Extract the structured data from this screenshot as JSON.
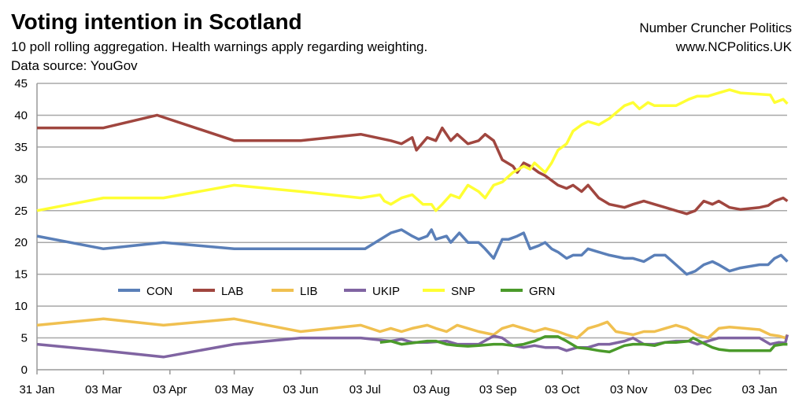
{
  "header": {
    "title": "Voting intention in Scotland",
    "subtitle": "10 poll rolling aggregation. Health warnings apply regarding weighting.",
    "source": "Data source: YouGov",
    "brand": "Number Cruncher Politics",
    "url": "www.NCPolitics.UK"
  },
  "chart_data": {
    "type": "line",
    "title": "Voting intention in Scotland",
    "xlabel": "",
    "ylabel": "",
    "ylim": [
      0,
      45
    ],
    "yticks": [
      0,
      5,
      10,
      15,
      20,
      25,
      30,
      35,
      40,
      45
    ],
    "xticks": [
      "31 Jan",
      "03 Mar",
      "03 Apr",
      "03 May",
      "03 Jun",
      "03 Jul",
      "03 Aug",
      "03 Sep",
      "03 Oct",
      "03 Nov",
      "03 Dec",
      "03 Jan"
    ],
    "grid": "horizontal",
    "legend": "inside-bottom",
    "series": [
      {
        "name": "CON",
        "color": "#5a7fb8",
        "points": [
          [
            "31 Jan",
            21
          ],
          [
            "03 Mar",
            19
          ],
          [
            "31 Mar",
            20
          ],
          [
            "03 May",
            19
          ],
          [
            "03 Jul",
            19
          ],
          [
            "15 Jul",
            21.5
          ],
          [
            "20 Jul",
            22
          ],
          [
            "25 Jul",
            21
          ],
          [
            "28 Jul",
            20.5
          ],
          [
            "01 Aug",
            21
          ],
          [
            "03 Aug",
            22
          ],
          [
            "05 Aug",
            20.5
          ],
          [
            "10 Aug",
            21
          ],
          [
            "12 Aug",
            20
          ],
          [
            "16 Aug",
            21.5
          ],
          [
            "20 Aug",
            20
          ],
          [
            "25 Aug",
            20
          ],
          [
            "28 Aug",
            19
          ],
          [
            "01 Sep",
            17.5
          ],
          [
            "05 Sep",
            20.5
          ],
          [
            "08 Sep",
            20.5
          ],
          [
            "12 Sep",
            21
          ],
          [
            "15 Sep",
            21.5
          ],
          [
            "18 Sep",
            19
          ],
          [
            "22 Sep",
            19.5
          ],
          [
            "25 Sep",
            20
          ],
          [
            "28 Sep",
            19
          ],
          [
            "01 Oct",
            18.5
          ],
          [
            "05 Oct",
            17.5
          ],
          [
            "08 Oct",
            18
          ],
          [
            "12 Oct",
            18
          ],
          [
            "15 Oct",
            19
          ],
          [
            "20 Oct",
            18.5
          ],
          [
            "25 Oct",
            18
          ],
          [
            "01 Nov",
            17.5
          ],
          [
            "05 Nov",
            17.5
          ],
          [
            "10 Nov",
            17
          ],
          [
            "15 Nov",
            18
          ],
          [
            "20 Nov",
            18
          ],
          [
            "25 Nov",
            16.5
          ],
          [
            "30 Nov",
            15
          ],
          [
            "04 Dec",
            15.5
          ],
          [
            "08 Dec",
            16.5
          ],
          [
            "12 Dec",
            17
          ],
          [
            "15 Dec",
            16.5
          ],
          [
            "20 Dec",
            15.5
          ],
          [
            "25 Dec",
            16
          ],
          [
            "03 Jan",
            16.5
          ],
          [
            "07 Jan",
            16.5
          ],
          [
            "10 Jan",
            17.5
          ],
          [
            "13 Jan",
            18
          ],
          [
            "16 Jan",
            17
          ]
        ]
      },
      {
        "name": "LAB",
        "color": "#a0463f",
        "points": [
          [
            "31 Jan",
            38
          ],
          [
            "03 Mar",
            38
          ],
          [
            "28 Mar",
            40
          ],
          [
            "03 May",
            36
          ],
          [
            "03 Jun",
            36
          ],
          [
            "01 Jul",
            37
          ],
          [
            "15 Jul",
            36
          ],
          [
            "20 Jul",
            35.5
          ],
          [
            "25 Jul",
            36.5
          ],
          [
            "27 Jul",
            34.5
          ],
          [
            "01 Aug",
            36.5
          ],
          [
            "05 Aug",
            36
          ],
          [
            "08 Aug",
            38
          ],
          [
            "12 Aug",
            36
          ],
          [
            "15 Aug",
            37
          ],
          [
            "20 Aug",
            35.5
          ],
          [
            "25 Aug",
            36
          ],
          [
            "28 Aug",
            37
          ],
          [
            "01 Sep",
            36
          ],
          [
            "05 Sep",
            33
          ],
          [
            "10 Sep",
            32
          ],
          [
            "12 Sep",
            31
          ],
          [
            "15 Sep",
            32.5
          ],
          [
            "18 Sep",
            32
          ],
          [
            "22 Sep",
            31
          ],
          [
            "25 Sep",
            30.5
          ],
          [
            "01 Oct",
            29
          ],
          [
            "05 Oct",
            28.5
          ],
          [
            "08 Oct",
            29
          ],
          [
            "12 Oct",
            28
          ],
          [
            "15 Oct",
            29
          ],
          [
            "20 Oct",
            27
          ],
          [
            "25 Oct",
            26
          ],
          [
            "01 Nov",
            25.5
          ],
          [
            "05 Nov",
            26
          ],
          [
            "10 Nov",
            26.5
          ],
          [
            "15 Nov",
            26
          ],
          [
            "20 Nov",
            25.5
          ],
          [
            "25 Nov",
            25
          ],
          [
            "30 Nov",
            24.5
          ],
          [
            "04 Dec",
            25
          ],
          [
            "08 Dec",
            26.5
          ],
          [
            "12 Dec",
            26
          ],
          [
            "15 Dec",
            26.5
          ],
          [
            "20 Dec",
            25.5
          ],
          [
            "25 Dec",
            25.2
          ],
          [
            "03 Jan",
            25.5
          ],
          [
            "07 Jan",
            25.8
          ],
          [
            "10 Jan",
            26.5
          ],
          [
            "14 Jan",
            27
          ],
          [
            "16 Jan",
            26.5
          ]
        ]
      },
      {
        "name": "LIB",
        "color": "#f0c050",
        "points": [
          [
            "31 Jan",
            7
          ],
          [
            "03 Mar",
            8
          ],
          [
            "31 Mar",
            7
          ],
          [
            "03 May",
            8
          ],
          [
            "03 Jun",
            6
          ],
          [
            "01 Jul",
            7
          ],
          [
            "10 Jul",
            6
          ],
          [
            "15 Jul",
            6.5
          ],
          [
            "20 Jul",
            6
          ],
          [
            "25 Jul",
            6.5
          ],
          [
            "01 Aug",
            7
          ],
          [
            "05 Aug",
            6.5
          ],
          [
            "10 Aug",
            6
          ],
          [
            "15 Aug",
            7
          ],
          [
            "20 Aug",
            6.5
          ],
          [
            "25 Aug",
            6
          ],
          [
            "01 Sep",
            5.5
          ],
          [
            "05 Sep",
            6.5
          ],
          [
            "10 Sep",
            7
          ],
          [
            "15 Sep",
            6.5
          ],
          [
            "20 Sep",
            6
          ],
          [
            "25 Sep",
            6.5
          ],
          [
            "01 Oct",
            6
          ],
          [
            "05 Oct",
            5.5
          ],
          [
            "10 Oct",
            5
          ],
          [
            "15 Oct",
            6.5
          ],
          [
            "20 Oct",
            7
          ],
          [
            "24 Oct",
            7.5
          ],
          [
            "28 Oct",
            6
          ],
          [
            "05 Nov",
            5.5
          ],
          [
            "10 Nov",
            6
          ],
          [
            "15 Nov",
            6
          ],
          [
            "20 Nov",
            6.5
          ],
          [
            "25 Nov",
            7
          ],
          [
            "30 Nov",
            6.5
          ],
          [
            "05 Dec",
            5.5
          ],
          [
            "10 Dec",
            5
          ],
          [
            "15 Dec",
            6.5
          ],
          [
            "20 Dec",
            6.7
          ],
          [
            "03 Jan",
            6.3
          ],
          [
            "08 Jan",
            5.5
          ],
          [
            "12 Jan",
            5.3
          ],
          [
            "15 Jan",
            5
          ],
          [
            "16 Jan",
            5.5
          ]
        ]
      },
      {
        "name": "UKIP",
        "color": "#8064a2",
        "points": [
          [
            "31 Jan",
            4
          ],
          [
            "03 Mar",
            3
          ],
          [
            "31 Mar",
            2
          ],
          [
            "03 May",
            4
          ],
          [
            "03 Jun",
            5
          ],
          [
            "01 Jul",
            5
          ],
          [
            "15 Jul",
            4.5
          ],
          [
            "20 Jul",
            4.8
          ],
          [
            "25 Jul",
            4.3
          ],
          [
            "01 Aug",
            4.3
          ],
          [
            "10 Aug",
            4.5
          ],
          [
            "15 Aug",
            4
          ],
          [
            "20 Aug",
            4
          ],
          [
            "25 Aug",
            4
          ],
          [
            "01 Sep",
            5.3
          ],
          [
            "05 Sep",
            5
          ],
          [
            "10 Sep",
            3.8
          ],
          [
            "15 Sep",
            3.5
          ],
          [
            "20 Sep",
            3.8
          ],
          [
            "25 Sep",
            3.5
          ],
          [
            "01 Oct",
            3.5
          ],
          [
            "05 Oct",
            3
          ],
          [
            "10 Oct",
            3.5
          ],
          [
            "15 Oct",
            3.5
          ],
          [
            "20 Oct",
            4
          ],
          [
            "25 Oct",
            4
          ],
          [
            "01 Nov",
            4.5
          ],
          [
            "05 Nov",
            5
          ],
          [
            "10 Nov",
            4
          ],
          [
            "15 Nov",
            4
          ],
          [
            "20 Nov",
            4.3
          ],
          [
            "25 Nov",
            4.5
          ],
          [
            "01 Dec",
            4.5
          ],
          [
            "05 Dec",
            4
          ],
          [
            "10 Dec",
            4.5
          ],
          [
            "15 Dec",
            5
          ],
          [
            "20 Dec",
            5
          ],
          [
            "03 Jan",
            5
          ],
          [
            "08 Jan",
            4
          ],
          [
            "12 Jan",
            4.3
          ],
          [
            "15 Jan",
            4.2
          ],
          [
            "16 Jan",
            5.5
          ]
        ]
      },
      {
        "name": "SNP",
        "color": "#ffff33",
        "points": [
          [
            "31 Jan",
            25
          ],
          [
            "03 Mar",
            27
          ],
          [
            "31 Mar",
            27
          ],
          [
            "03 May",
            29
          ],
          [
            "03 Jun",
            28
          ],
          [
            "01 Jul",
            27
          ],
          [
            "10 Jul",
            27.5
          ],
          [
            "12 Jul",
            26.5
          ],
          [
            "15 Jul",
            26
          ],
          [
            "20 Jul",
            27
          ],
          [
            "25 Jul",
            27.5
          ],
          [
            "30 Jul",
            26
          ],
          [
            "03 Aug",
            26
          ],
          [
            "05 Aug",
            25
          ],
          [
            "08 Aug",
            26
          ],
          [
            "12 Aug",
            27.5
          ],
          [
            "16 Aug",
            27
          ],
          [
            "20 Aug",
            29
          ],
          [
            "25 Aug",
            28
          ],
          [
            "28 Aug",
            27
          ],
          [
            "01 Sep",
            29
          ],
          [
            "05 Sep",
            29.5
          ],
          [
            "10 Sep",
            31
          ],
          [
            "15 Sep",
            32
          ],
          [
            "18 Sep",
            31.5
          ],
          [
            "20 Sep",
            32.5
          ],
          [
            "25 Sep",
            31
          ],
          [
            "28 Sep",
            32.5
          ],
          [
            "01 Oct",
            34.5
          ],
          [
            "05 Oct",
            35.5
          ],
          [
            "08 Oct",
            37.5
          ],
          [
            "12 Oct",
            38.5
          ],
          [
            "15 Oct",
            39
          ],
          [
            "20 Oct",
            38.5
          ],
          [
            "25 Oct",
            39.5
          ],
          [
            "01 Nov",
            41.5
          ],
          [
            "05 Nov",
            42
          ],
          [
            "08 Nov",
            41
          ],
          [
            "12 Nov",
            42
          ],
          [
            "15 Nov",
            41.5
          ],
          [
            "25 Nov",
            41.5
          ],
          [
            "01 Dec",
            42.5
          ],
          [
            "05 Dec",
            43
          ],
          [
            "10 Dec",
            43
          ],
          [
            "15 Dec",
            43.5
          ],
          [
            "20 Dec",
            44
          ],
          [
            "25 Dec",
            43.5
          ],
          [
            "03 Jan",
            43.3
          ],
          [
            "08 Jan",
            43.2
          ],
          [
            "10 Jan",
            42
          ],
          [
            "14 Jan",
            42.5
          ],
          [
            "16 Jan",
            41.8
          ]
        ]
      },
      {
        "name": "GRN",
        "color": "#4a9a2a",
        "points": [
          [
            "10 Jul",
            4.3
          ],
          [
            "15 Jul",
            4.5
          ],
          [
            "20 Jul",
            4
          ],
          [
            "25 Jul",
            4.2
          ],
          [
            "01 Aug",
            4.5
          ],
          [
            "05 Aug",
            4.5
          ],
          [
            "10 Aug",
            4
          ],
          [
            "15 Aug",
            3.8
          ],
          [
            "20 Aug",
            3.7
          ],
          [
            "25 Aug",
            3.8
          ],
          [
            "01 Sep",
            4
          ],
          [
            "05 Sep",
            4
          ],
          [
            "10 Sep",
            3.8
          ],
          [
            "15 Sep",
            4
          ],
          [
            "20 Sep",
            4.5
          ],
          [
            "25 Sep",
            5.2
          ],
          [
            "01 Oct",
            5.2
          ],
          [
            "05 Oct",
            4.5
          ],
          [
            "10 Oct",
            3.5
          ],
          [
            "15 Oct",
            3.3
          ],
          [
            "20 Oct",
            3
          ],
          [
            "25 Oct",
            2.8
          ],
          [
            "01 Nov",
            3.8
          ],
          [
            "05 Nov",
            4
          ],
          [
            "10 Nov",
            4
          ],
          [
            "15 Nov",
            3.8
          ],
          [
            "20 Nov",
            4.3
          ],
          [
            "25 Nov",
            4.3
          ],
          [
            "01 Dec",
            4.5
          ],
          [
            "03 Dec",
            5
          ],
          [
            "07 Dec",
            4.3
          ],
          [
            "12 Dec",
            3.5
          ],
          [
            "15 Dec",
            3.2
          ],
          [
            "20 Dec",
            3
          ],
          [
            "03 Jan",
            3
          ],
          [
            "08 Jan",
            3
          ],
          [
            "10 Jan",
            3.8
          ],
          [
            "14 Jan",
            4
          ],
          [
            "16 Jan",
            4
          ]
        ]
      }
    ]
  }
}
